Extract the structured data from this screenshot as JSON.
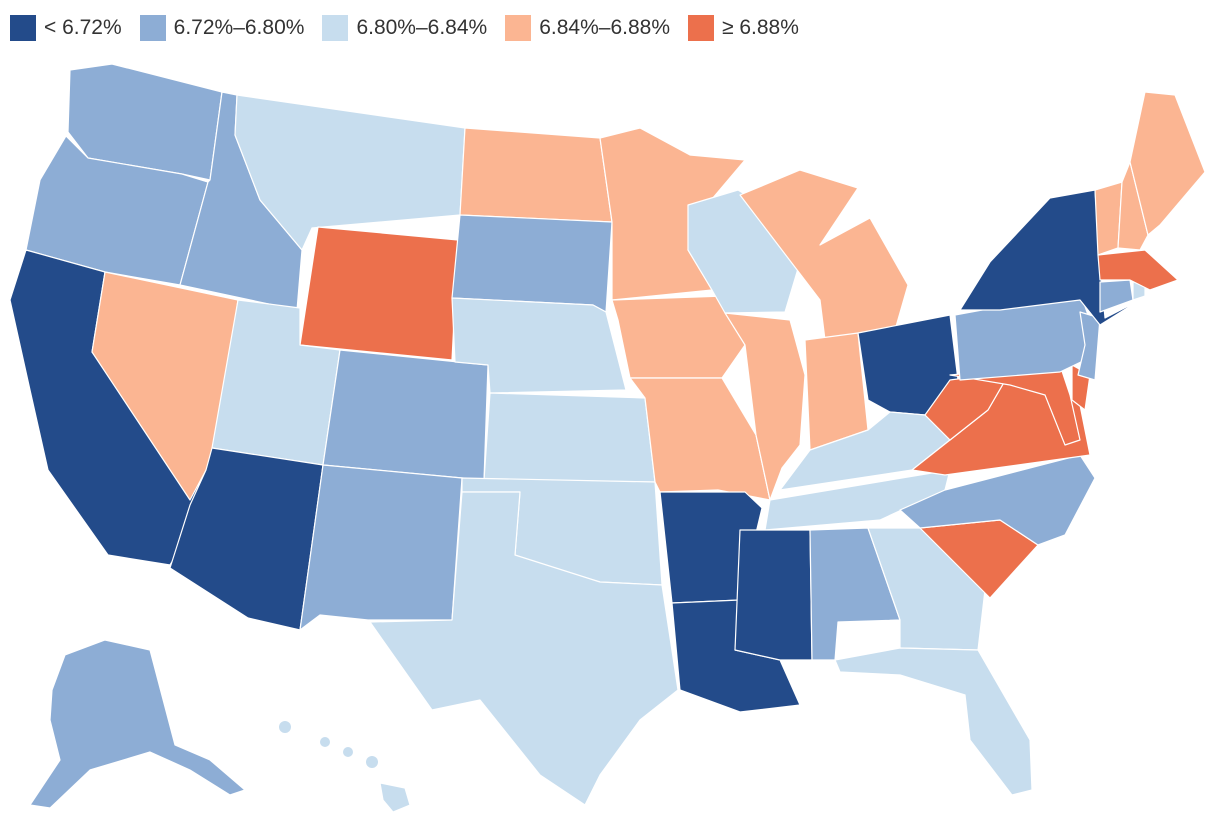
{
  "legend": {
    "items": [
      {
        "label": "< 6.72%",
        "color": "#234b8a"
      },
      {
        "label": "6.72%–6.80%",
        "color": "#8dadd5"
      },
      {
        "label": "6.80%–6.84%",
        "color": "#c7ddee"
      },
      {
        "label": "6.84%–6.88%",
        "color": "#fbb592"
      },
      {
        "label": "≥ 6.88%",
        "color": "#ec704c"
      }
    ]
  },
  "map": {
    "states": [
      {
        "id": "WA",
        "bin": 1
      },
      {
        "id": "OR",
        "bin": 1
      },
      {
        "id": "CA",
        "bin": 0
      },
      {
        "id": "NV",
        "bin": 3
      },
      {
        "id": "ID",
        "bin": 1
      },
      {
        "id": "MT",
        "bin": 2
      },
      {
        "id": "WY",
        "bin": 4
      },
      {
        "id": "UT",
        "bin": 2
      },
      {
        "id": "AZ",
        "bin": 0
      },
      {
        "id": "CO",
        "bin": 1
      },
      {
        "id": "NM",
        "bin": 1
      },
      {
        "id": "ND",
        "bin": 3
      },
      {
        "id": "SD",
        "bin": 1
      },
      {
        "id": "NE",
        "bin": 2
      },
      {
        "id": "KS",
        "bin": 2
      },
      {
        "id": "OK",
        "bin": 2
      },
      {
        "id": "TX",
        "bin": 2
      },
      {
        "id": "MN",
        "bin": 3
      },
      {
        "id": "IA",
        "bin": 3
      },
      {
        "id": "MO",
        "bin": 3
      },
      {
        "id": "AR",
        "bin": 0
      },
      {
        "id": "LA",
        "bin": 0
      },
      {
        "id": "WI",
        "bin": 2
      },
      {
        "id": "IL",
        "bin": 3
      },
      {
        "id": "MI",
        "bin": 3
      },
      {
        "id": "IN",
        "bin": 3
      },
      {
        "id": "OH",
        "bin": 0
      },
      {
        "id": "KY",
        "bin": 2
      },
      {
        "id": "TN",
        "bin": 2
      },
      {
        "id": "MS",
        "bin": 0
      },
      {
        "id": "AL",
        "bin": 1
      },
      {
        "id": "GA",
        "bin": 2
      },
      {
        "id": "FL",
        "bin": 2
      },
      {
        "id": "SC",
        "bin": 4
      },
      {
        "id": "NC",
        "bin": 1
      },
      {
        "id": "VA",
        "bin": 4
      },
      {
        "id": "WV",
        "bin": 4
      },
      {
        "id": "MD",
        "bin": 4
      },
      {
        "id": "DE",
        "bin": 4
      },
      {
        "id": "PA",
        "bin": 1
      },
      {
        "id": "NJ",
        "bin": 1
      },
      {
        "id": "NY",
        "bin": 0
      },
      {
        "id": "CT",
        "bin": 1
      },
      {
        "id": "RI",
        "bin": 2
      },
      {
        "id": "MA",
        "bin": 4
      },
      {
        "id": "VT",
        "bin": 3
      },
      {
        "id": "NH",
        "bin": 3
      },
      {
        "id": "ME",
        "bin": 3
      },
      {
        "id": "AK",
        "bin": 1
      },
      {
        "id": "HI",
        "bin": 2
      }
    ]
  }
}
